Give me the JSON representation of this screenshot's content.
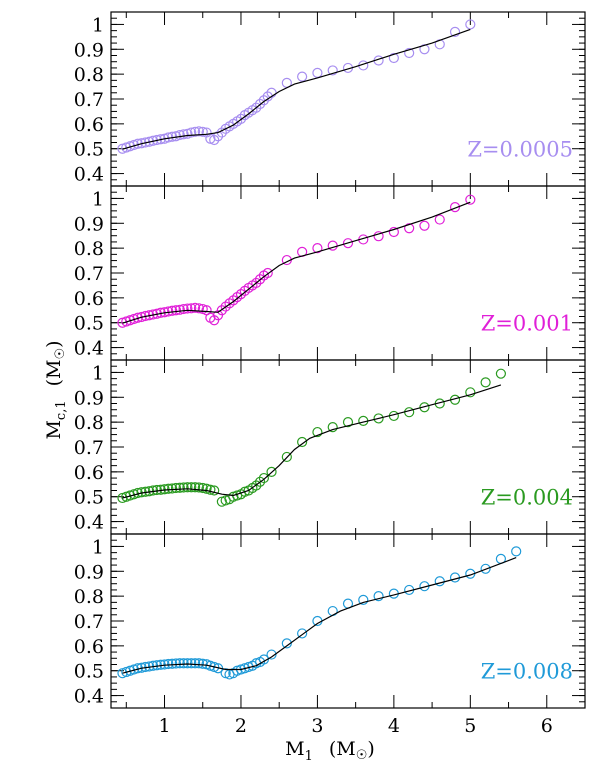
{
  "figure": {
    "xlabel_main": "M",
    "xlabel_sub": "1",
    "xlabel_unit": "(M",
    "xlabel_unit_close": ")",
    "ylabel_main": "M",
    "ylabel_sub": "c,1",
    "ylabel_unit": "(M",
    "ylabel_unit_close": ")"
  },
  "chart_data": [
    {
      "type": "scatter",
      "label": "Z=0.0005",
      "color": "#a78ef0",
      "xlim": [
        0.3,
        6.5
      ],
      "ylim": [
        0.35,
        1.05
      ],
      "x_ticks": [
        1,
        2,
        3,
        4,
        5,
        6
      ],
      "y_ticks": [
        0.4,
        0.5,
        0.6,
        0.7,
        0.8,
        0.9,
        1
      ],
      "y_tick_labels": [
        "0.4",
        "0.5",
        "0.6",
        "0.7",
        "0.8",
        "0.9",
        "1"
      ],
      "points": [
        [
          0.45,
          0.5
        ],
        [
          0.5,
          0.505
        ],
        [
          0.55,
          0.51
        ],
        [
          0.6,
          0.515
        ],
        [
          0.65,
          0.52
        ],
        [
          0.7,
          0.522
        ],
        [
          0.75,
          0.525
        ],
        [
          0.8,
          0.528
        ],
        [
          0.85,
          0.532
        ],
        [
          0.9,
          0.535
        ],
        [
          0.95,
          0.538
        ],
        [
          1.0,
          0.54
        ],
        [
          1.05,
          0.545
        ],
        [
          1.1,
          0.548
        ],
        [
          1.15,
          0.55
        ],
        [
          1.2,
          0.555
        ],
        [
          1.25,
          0.558
        ],
        [
          1.3,
          0.56
        ],
        [
          1.35,
          0.565
        ],
        [
          1.4,
          0.568
        ],
        [
          1.45,
          0.57
        ],
        [
          1.5,
          0.568
        ],
        [
          1.55,
          0.565
        ],
        [
          1.6,
          0.54
        ],
        [
          1.65,
          0.535
        ],
        [
          1.7,
          0.55
        ],
        [
          1.75,
          0.565
        ],
        [
          1.8,
          0.58
        ],
        [
          1.85,
          0.59
        ],
        [
          1.9,
          0.6
        ],
        [
          1.95,
          0.61
        ],
        [
          2.0,
          0.62
        ],
        [
          2.05,
          0.635
        ],
        [
          2.1,
          0.645
        ],
        [
          2.15,
          0.655
        ],
        [
          2.2,
          0.665
        ],
        [
          2.25,
          0.68
        ],
        [
          2.3,
          0.695
        ],
        [
          2.35,
          0.71
        ],
        [
          2.4,
          0.725
        ],
        [
          2.6,
          0.765
        ],
        [
          2.8,
          0.79
        ],
        [
          3.0,
          0.805
        ],
        [
          3.2,
          0.815
        ],
        [
          3.4,
          0.825
        ],
        [
          3.6,
          0.835
        ],
        [
          3.8,
          0.855
        ],
        [
          4.0,
          0.865
        ],
        [
          4.2,
          0.885
        ],
        [
          4.4,
          0.9
        ],
        [
          4.6,
          0.92
        ],
        [
          4.8,
          0.97
        ],
        [
          5.0,
          1.0
        ]
      ],
      "fit": [
        [
          0.45,
          0.498
        ],
        [
          0.7,
          0.52
        ],
        [
          1.0,
          0.54
        ],
        [
          1.3,
          0.553
        ],
        [
          1.55,
          0.558
        ],
        [
          1.7,
          0.565
        ],
        [
          1.9,
          0.595
        ],
        [
          2.1,
          0.64
        ],
        [
          2.3,
          0.69
        ],
        [
          2.5,
          0.73
        ],
        [
          2.7,
          0.76
        ],
        [
          3.0,
          0.785
        ],
        [
          3.5,
          0.83
        ],
        [
          4.0,
          0.88
        ],
        [
          4.5,
          0.925
        ],
        [
          5.0,
          0.98
        ]
      ]
    },
    {
      "type": "scatter",
      "label": "Z=0.001",
      "color": "#e020d8",
      "xlim": [
        0.3,
        6.5
      ],
      "ylim": [
        0.35,
        1.05
      ],
      "x_ticks": [
        1,
        2,
        3,
        4,
        5,
        6
      ],
      "y_ticks": [
        0.4,
        0.5,
        0.6,
        0.7,
        0.8,
        0.9,
        1
      ],
      "y_tick_labels": [
        "0.4",
        "0.5",
        "0.6",
        "0.7",
        "0.8",
        "0.9",
        "1"
      ],
      "points": [
        [
          0.45,
          0.5
        ],
        [
          0.5,
          0.505
        ],
        [
          0.55,
          0.51
        ],
        [
          0.6,
          0.515
        ],
        [
          0.65,
          0.52
        ],
        [
          0.7,
          0.523
        ],
        [
          0.75,
          0.527
        ],
        [
          0.8,
          0.53
        ],
        [
          0.85,
          0.533
        ],
        [
          0.9,
          0.536
        ],
        [
          0.95,
          0.54
        ],
        [
          1.0,
          0.542
        ],
        [
          1.05,
          0.545
        ],
        [
          1.1,
          0.548
        ],
        [
          1.15,
          0.55
        ],
        [
          1.2,
          0.552
        ],
        [
          1.25,
          0.555
        ],
        [
          1.3,
          0.557
        ],
        [
          1.35,
          0.558
        ],
        [
          1.4,
          0.56
        ],
        [
          1.45,
          0.558
        ],
        [
          1.5,
          0.555
        ],
        [
          1.55,
          0.55
        ],
        [
          1.6,
          0.52
        ],
        [
          1.65,
          0.51
        ],
        [
          1.7,
          0.53
        ],
        [
          1.75,
          0.55
        ],
        [
          1.8,
          0.565
        ],
        [
          1.85,
          0.578
        ],
        [
          1.9,
          0.59
        ],
        [
          1.95,
          0.603
        ],
        [
          2.0,
          0.615
        ],
        [
          2.05,
          0.628
        ],
        [
          2.1,
          0.64
        ],
        [
          2.15,
          0.65
        ],
        [
          2.2,
          0.66
        ],
        [
          2.25,
          0.675
        ],
        [
          2.3,
          0.69
        ],
        [
          2.35,
          0.7
        ],
        [
          2.6,
          0.752
        ],
        [
          2.8,
          0.785
        ],
        [
          3.0,
          0.8
        ],
        [
          3.2,
          0.81
        ],
        [
          3.4,
          0.82
        ],
        [
          3.6,
          0.835
        ],
        [
          3.8,
          0.848
        ],
        [
          4.0,
          0.865
        ],
        [
          4.2,
          0.88
        ],
        [
          4.4,
          0.89
        ],
        [
          4.6,
          0.915
        ],
        [
          4.8,
          0.965
        ],
        [
          5.0,
          0.995
        ]
      ],
      "fit": [
        [
          0.45,
          0.498
        ],
        [
          0.7,
          0.522
        ],
        [
          1.0,
          0.54
        ],
        [
          1.3,
          0.55
        ],
        [
          1.55,
          0.545
        ],
        [
          1.7,
          0.542
        ],
        [
          1.9,
          0.585
        ],
        [
          2.1,
          0.635
        ],
        [
          2.3,
          0.685
        ],
        [
          2.5,
          0.73
        ],
        [
          2.7,
          0.76
        ],
        [
          3.0,
          0.785
        ],
        [
          3.5,
          0.83
        ],
        [
          4.0,
          0.875
        ],
        [
          4.5,
          0.925
        ],
        [
          5.0,
          0.985
        ]
      ]
    },
    {
      "type": "scatter",
      "label": "Z=0.004",
      "color": "#2a9a20",
      "xlim": [
        0.3,
        6.5
      ],
      "ylim": [
        0.35,
        1.05
      ],
      "x_ticks": [
        1,
        2,
        3,
        4,
        5,
        6
      ],
      "y_ticks": [
        0.4,
        0.5,
        0.6,
        0.7,
        0.8,
        0.9,
        1
      ],
      "y_tick_labels": [
        "0.4",
        "0.5",
        "0.6",
        "0.7",
        "0.8",
        "0.9",
        "1"
      ],
      "points": [
        [
          0.45,
          0.495
        ],
        [
          0.5,
          0.5
        ],
        [
          0.55,
          0.505
        ],
        [
          0.6,
          0.51
        ],
        [
          0.65,
          0.515
        ],
        [
          0.7,
          0.518
        ],
        [
          0.75,
          0.52
        ],
        [
          0.8,
          0.522
        ],
        [
          0.85,
          0.525
        ],
        [
          0.9,
          0.527
        ],
        [
          0.95,
          0.528
        ],
        [
          1.0,
          0.53
        ],
        [
          1.05,
          0.532
        ],
        [
          1.1,
          0.533
        ],
        [
          1.15,
          0.535
        ],
        [
          1.2,
          0.536
        ],
        [
          1.25,
          0.537
        ],
        [
          1.3,
          0.538
        ],
        [
          1.35,
          0.538
        ],
        [
          1.4,
          0.538
        ],
        [
          1.45,
          0.537
        ],
        [
          1.5,
          0.535
        ],
        [
          1.55,
          0.532
        ],
        [
          1.6,
          0.528
        ],
        [
          1.65,
          0.525
        ],
        [
          1.75,
          0.48
        ],
        [
          1.8,
          0.485
        ],
        [
          1.85,
          0.49
        ],
        [
          1.9,
          0.5
        ],
        [
          1.95,
          0.505
        ],
        [
          2.0,
          0.51
        ],
        [
          2.05,
          0.52
        ],
        [
          2.1,
          0.525
        ],
        [
          2.15,
          0.535
        ],
        [
          2.2,
          0.545
        ],
        [
          2.25,
          0.56
        ],
        [
          2.3,
          0.575
        ],
        [
          2.4,
          0.6
        ],
        [
          2.6,
          0.66
        ],
        [
          2.8,
          0.72
        ],
        [
          3.0,
          0.76
        ],
        [
          3.2,
          0.78
        ],
        [
          3.4,
          0.8
        ],
        [
          3.6,
          0.805
        ],
        [
          3.8,
          0.815
        ],
        [
          4.0,
          0.825
        ],
        [
          4.2,
          0.84
        ],
        [
          4.4,
          0.86
        ],
        [
          4.6,
          0.875
        ],
        [
          4.8,
          0.89
        ],
        [
          5.0,
          0.92
        ],
        [
          5.2,
          0.96
        ],
        [
          5.4,
          0.995
        ]
      ],
      "fit": [
        [
          0.45,
          0.495
        ],
        [
          0.7,
          0.515
        ],
        [
          1.0,
          0.527
        ],
        [
          1.3,
          0.532
        ],
        [
          1.55,
          0.525
        ],
        [
          1.75,
          0.51
        ],
        [
          1.9,
          0.505
        ],
        [
          2.1,
          0.525
        ],
        [
          2.3,
          0.57
        ],
        [
          2.5,
          0.625
        ],
        [
          2.7,
          0.69
        ],
        [
          2.9,
          0.735
        ],
        [
          3.2,
          0.77
        ],
        [
          3.6,
          0.8
        ],
        [
          4.0,
          0.83
        ],
        [
          4.5,
          0.87
        ],
        [
          5.0,
          0.91
        ],
        [
          5.4,
          0.95
        ]
      ]
    },
    {
      "type": "scatter",
      "label": "Z=0.008",
      "color": "#1f9ad8",
      "xlim": [
        0.3,
        6.5
      ],
      "ylim": [
        0.35,
        1.05
      ],
      "x_ticks": [
        1,
        2,
        3,
        4,
        5,
        6
      ],
      "x_tick_labels": [
        "1",
        "2",
        "3",
        "4",
        "5",
        "6"
      ],
      "y_ticks": [
        0.4,
        0.5,
        0.6,
        0.7,
        0.8,
        0.9,
        1
      ],
      "y_tick_labels": [
        "0.4",
        "0.5",
        "0.6",
        "0.7",
        "0.8",
        "0.9",
        "1"
      ],
      "points": [
        [
          0.45,
          0.49
        ],
        [
          0.5,
          0.495
        ],
        [
          0.55,
          0.5
        ],
        [
          0.6,
          0.505
        ],
        [
          0.65,
          0.51
        ],
        [
          0.7,
          0.512
        ],
        [
          0.75,
          0.515
        ],
        [
          0.8,
          0.517
        ],
        [
          0.85,
          0.52
        ],
        [
          0.9,
          0.522
        ],
        [
          0.95,
          0.524
        ],
        [
          1.0,
          0.525
        ],
        [
          1.05,
          0.527
        ],
        [
          1.1,
          0.528
        ],
        [
          1.15,
          0.529
        ],
        [
          1.2,
          0.53
        ],
        [
          1.25,
          0.53
        ],
        [
          1.3,
          0.53
        ],
        [
          1.35,
          0.53
        ],
        [
          1.4,
          0.53
        ],
        [
          1.45,
          0.53
        ],
        [
          1.5,
          0.528
        ],
        [
          1.55,
          0.526
        ],
        [
          1.6,
          0.52
        ],
        [
          1.65,
          0.515
        ],
        [
          1.7,
          0.51
        ],
        [
          1.8,
          0.49
        ],
        [
          1.85,
          0.485
        ],
        [
          1.9,
          0.49
        ],
        [
          1.95,
          0.5
        ],
        [
          2.0,
          0.505
        ],
        [
          2.05,
          0.51
        ],
        [
          2.1,
          0.515
        ],
        [
          2.15,
          0.52
        ],
        [
          2.2,
          0.53
        ],
        [
          2.25,
          0.535
        ],
        [
          2.3,
          0.545
        ],
        [
          2.4,
          0.565
        ],
        [
          2.6,
          0.61
        ],
        [
          2.8,
          0.65
        ],
        [
          3.0,
          0.7
        ],
        [
          3.2,
          0.74
        ],
        [
          3.4,
          0.77
        ],
        [
          3.6,
          0.785
        ],
        [
          3.8,
          0.8
        ],
        [
          4.0,
          0.81
        ],
        [
          4.2,
          0.825
        ],
        [
          4.4,
          0.84
        ],
        [
          4.6,
          0.86
        ],
        [
          4.8,
          0.875
        ],
        [
          5.0,
          0.89
        ],
        [
          5.2,
          0.91
        ],
        [
          5.4,
          0.95
        ],
        [
          5.6,
          0.98
        ]
      ],
      "fit": [
        [
          0.45,
          0.49
        ],
        [
          0.7,
          0.51
        ],
        [
          1.0,
          0.522
        ],
        [
          1.3,
          0.527
        ],
        [
          1.55,
          0.522
        ],
        [
          1.8,
          0.505
        ],
        [
          2.0,
          0.505
        ],
        [
          2.2,
          0.52
        ],
        [
          2.4,
          0.555
        ],
        [
          2.6,
          0.6
        ],
        [
          2.8,
          0.645
        ],
        [
          3.0,
          0.69
        ],
        [
          3.3,
          0.74
        ],
        [
          3.6,
          0.775
        ],
        [
          4.0,
          0.805
        ],
        [
          4.5,
          0.845
        ],
        [
          5.0,
          0.885
        ],
        [
          5.6,
          0.955
        ]
      ]
    }
  ]
}
